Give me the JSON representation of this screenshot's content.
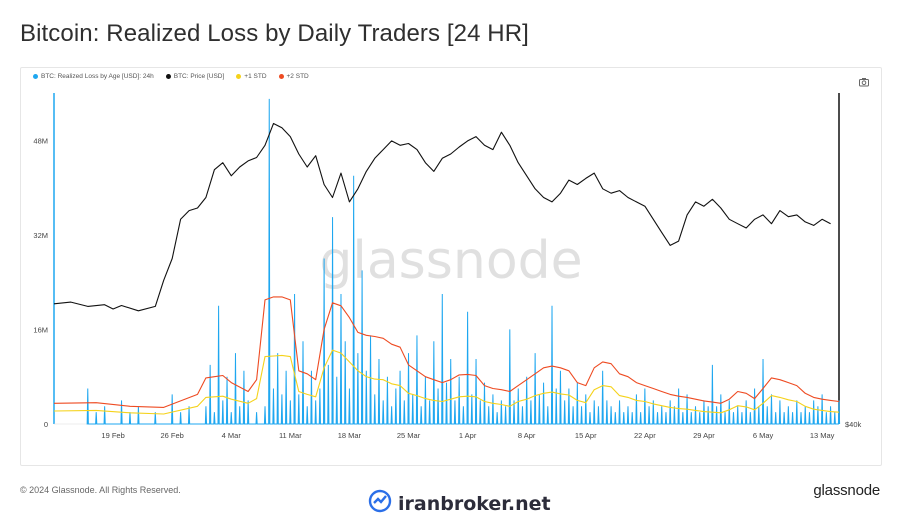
{
  "title": "Bitcoin: Realized Loss by Daily Traders [24 HR]",
  "legend": [
    {
      "label": "BTC: Realized Loss by Age [USD]: 24h",
      "color": "#1ea7f0"
    },
    {
      "label": "BTC: Price [USD]",
      "color": "#111111"
    },
    {
      "label": "+1 STD",
      "color": "#f5d21a"
    },
    {
      "label": "+2 STD",
      "color": "#ee4b22"
    }
  ],
  "watermark": "glassnode",
  "footer": {
    "copyright": "© 2024 Glassnode. All Rights Reserved.",
    "brand": "glassnode",
    "partner": "iranbroker.net"
  },
  "icons": {
    "camera": "camera-icon",
    "partner_logo": "chart-check-icon"
  },
  "chart_data": {
    "type": "line",
    "x_ticks": [
      "19 Feb",
      "26 Feb",
      "4 Mar",
      "11 Mar",
      "18 Mar",
      "25 Mar",
      "1 Apr",
      "8 Apr",
      "15 Apr",
      "22 Apr",
      "29 Apr",
      "6 May",
      "13 May"
    ],
    "y_left_ticks": [
      "0",
      "16M",
      "32M",
      "48M"
    ],
    "y_right_ticks": [
      "$40k"
    ],
    "y_left_range": [
      0,
      56000000
    ],
    "grid": false,
    "legend_position": "top-left",
    "series": [
      {
        "name": "BTC: Realized Loss by Age [USD]: 24h",
        "color": "#1ea7f0",
        "note_units": "USD millions",
        "days_from_12_Feb": [
          4,
          5,
          6,
          8,
          9,
          10,
          12,
          14,
          15,
          16,
          18,
          18.5,
          19,
          19.5,
          20,
          20.5,
          21,
          21.5,
          22,
          22.5,
          23,
          24,
          25,
          25.5,
          26,
          26.5,
          27,
          27.5,
          28,
          28.5,
          29,
          29.5,
          30,
          30.5,
          31,
          31.5,
          32,
          32.5,
          33,
          33.5,
          34,
          34.5,
          35,
          35.5,
          36,
          36.5,
          37,
          37.5,
          38,
          38.5,
          39,
          39.5,
          40,
          40.5,
          41,
          41.5,
          42,
          42.5,
          43,
          43.5,
          44,
          44.5,
          45,
          45.5,
          46,
          46.5,
          47,
          47.5,
          48,
          48.5,
          49,
          49.5,
          50,
          50.5,
          51,
          51.5,
          52,
          52.5,
          53,
          53.5,
          54,
          54.5,
          55,
          55.5,
          56,
          56.5,
          57,
          57.5,
          58,
          58.5,
          59,
          59.5,
          60,
          60.5,
          61,
          61.5,
          62,
          62.5,
          63,
          63.5,
          64,
          64.5,
          65,
          65.5,
          66,
          66.5,
          67,
          67.5,
          68,
          68.5,
          69,
          69.5,
          70,
          70.5,
          71,
          71.5,
          72,
          72.5,
          73,
          73.5,
          74,
          74.5,
          75,
          75.5,
          76,
          76.5,
          77,
          77.5,
          78,
          78.5,
          79,
          79.5,
          80,
          80.5,
          81,
          81.5,
          82,
          82.5,
          83,
          83.5,
          84,
          84.5,
          85,
          85.5,
          86,
          86.5,
          87,
          87.5,
          88,
          88.5,
          89,
          89.5,
          90,
          90.5,
          91,
          91.5,
          92,
          92.5,
          93
        ],
        "values": [
          6,
          2,
          3,
          4,
          2,
          3,
          2,
          5,
          2,
          3,
          3,
          10,
          2,
          20,
          4,
          8,
          2,
          12,
          3,
          9,
          4,
          2,
          3,
          55,
          6,
          12,
          5,
          9,
          4,
          22,
          5,
          14,
          3,
          9,
          4,
          6,
          28,
          10,
          35,
          8,
          22,
          14,
          6,
          42,
          12,
          26,
          9,
          15,
          5,
          11,
          4,
          8,
          3,
          6,
          9,
          4,
          12,
          5,
          15,
          3,
          8,
          4,
          14,
          6,
          22,
          7,
          11,
          4,
          8,
          3,
          19,
          5,
          11,
          4,
          7,
          3,
          5,
          2,
          4,
          3,
          16,
          4,
          6,
          3,
          8,
          4,
          12,
          5,
          7,
          3,
          20,
          6,
          9,
          4,
          6,
          3,
          7,
          3,
          5,
          2,
          4,
          3,
          9,
          4,
          3,
          2,
          4,
          2,
          3,
          2,
          5,
          2,
          6,
          3,
          4,
          2,
          3,
          2,
          4,
          3,
          6,
          2,
          5,
          2,
          3,
          2,
          4,
          3,
          10,
          3,
          5,
          2,
          4,
          2,
          3,
          2,
          4,
          2,
          6,
          3,
          11,
          3,
          5,
          2,
          4,
          2,
          3,
          2,
          4,
          2,
          3,
          2,
          4,
          3,
          5,
          2,
          3,
          2,
          4,
          2,
          3,
          2,
          4,
          3,
          5
        ]
      },
      {
        "name": "BTC: Price [USD]",
        "color": "#111111",
        "note_units": "USD thousands",
        "days_from_12_Feb": [
          0,
          2,
          4,
          6,
          7,
          8,
          10,
          12,
          13,
          14,
          15,
          16,
          17,
          18,
          19,
          20,
          21,
          22,
          23,
          24,
          25,
          26,
          27,
          28,
          29,
          30,
          31,
          32,
          33,
          34,
          35,
          36,
          37,
          38,
          39,
          40,
          41,
          42,
          43,
          44,
          45,
          46,
          47,
          48,
          49,
          50,
          51,
          52,
          53,
          54,
          55,
          56,
          57,
          58,
          59,
          60,
          61,
          62,
          63,
          64,
          65,
          66,
          67,
          68,
          69,
          70,
          71,
          72,
          73,
          74,
          75,
          76,
          77,
          78,
          79,
          80,
          81,
          82,
          83,
          84,
          85,
          86,
          87,
          88,
          89,
          90,
          91,
          92
        ],
        "values": [
          51.8,
          52.0,
          51.5,
          51.7,
          51.2,
          51.6,
          51.0,
          51.5,
          54.5,
          57.0,
          61.5,
          62.5,
          62.8,
          64.0,
          67.2,
          68.0,
          66.5,
          67.5,
          68.2,
          68.6,
          70.0,
          72.5,
          72.0,
          71.0,
          69.0,
          67.5,
          68.8,
          65.5,
          64.0,
          66.8,
          63.5,
          65.0,
          67.0,
          68.5,
          69.5,
          70.5,
          70.0,
          70.2,
          69.5,
          68.0,
          67.0,
          68.5,
          69.0,
          69.8,
          70.5,
          71.0,
          70.0,
          69.5,
          71.5,
          70.0,
          68.0,
          66.5,
          65.0,
          64.0,
          63.5,
          64.5,
          66.0,
          65.5,
          66.2,
          66.8,
          65.0,
          64.5,
          64.8,
          64.0,
          63.5,
          63.0,
          61.5,
          60.0,
          58.5,
          59.0,
          62.0,
          63.5,
          63.0,
          63.8,
          62.8,
          61.5,
          61.0,
          60.5,
          61.5,
          62.0,
          61.0,
          62.5,
          61.8,
          62.0,
          61.2,
          60.8,
          61.5,
          61.0
        ]
      },
      {
        "name": "+1 STD",
        "color": "#f5d21a",
        "note_units": "USD millions",
        "days_from_12_Feb": [
          0,
          5,
          9,
          13,
          17,
          18,
          19,
          20,
          21,
          23,
          24,
          25,
          26,
          27,
          28,
          29,
          30,
          31,
          32,
          33,
          34,
          35,
          36,
          37,
          38,
          39,
          40,
          41,
          42,
          43,
          44,
          45,
          46,
          47,
          48,
          49,
          50,
          51,
          52,
          53,
          54,
          55,
          56,
          57,
          58,
          59,
          60,
          61,
          62,
          63,
          64,
          65,
          66,
          67,
          68,
          69,
          70,
          71,
          72,
          73,
          74,
          75,
          76,
          77,
          78,
          79,
          80,
          81,
          82,
          83,
          84,
          85,
          86,
          87,
          88,
          89,
          90,
          91,
          92,
          93
        ],
        "values": [
          2.2,
          2.3,
          1.9,
          1.7,
          3.0,
          4.5,
          4.6,
          4.7,
          4.2,
          3.5,
          4.3,
          11.4,
          11.5,
          11.6,
          11.4,
          5.5,
          5.0,
          4.6,
          9.5,
          12.5,
          12.0,
          10.5,
          9.0,
          8.0,
          7.6,
          7.5,
          6.8,
          6.5,
          5.2,
          4.8,
          4.3,
          4.0,
          3.8,
          4.2,
          4.6,
          4.7,
          4.6,
          3.8,
          3.5,
          3.3,
          3.0,
          3.8,
          4.2,
          4.8,
          5.2,
          5.4,
          5.1,
          4.9,
          4.0,
          3.6,
          5.8,
          6.5,
          6.3,
          4.8,
          4.5,
          4.0,
          3.8,
          3.4,
          3.1,
          2.8,
          2.6,
          2.5,
          2.3,
          2.1,
          2.0,
          1.9,
          2.4,
          3.1,
          2.9,
          2.4,
          3.5,
          4.8,
          4.5,
          4.1,
          3.8,
          3.0,
          2.5,
          2.3,
          2.1,
          2.0
        ]
      },
      {
        "name": "+2 STD",
        "color": "#ee4b22",
        "note_units": "USD millions",
        "days_from_12_Feb": [
          0,
          5,
          9,
          13,
          17,
          18,
          19,
          20,
          21,
          23,
          24,
          25,
          26,
          27,
          28,
          29,
          30,
          31,
          32,
          33,
          34,
          35,
          36,
          37,
          38,
          39,
          40,
          41,
          42,
          43,
          44,
          45,
          46,
          47,
          48,
          49,
          50,
          51,
          52,
          53,
          54,
          55,
          56,
          57,
          58,
          59,
          60,
          61,
          62,
          63,
          64,
          65,
          66,
          67,
          68,
          69,
          70,
          71,
          72,
          73,
          74,
          75,
          76,
          77,
          78,
          79,
          80,
          81,
          82,
          83,
          84,
          85,
          86,
          87,
          88,
          89,
          90,
          91,
          92,
          93
        ],
        "values": [
          3.5,
          3.6,
          3.0,
          2.8,
          5.0,
          7.8,
          8.0,
          8.2,
          7.0,
          5.5,
          7.5,
          21.0,
          21.5,
          21.5,
          21.0,
          9.0,
          8.5,
          7.5,
          16.0,
          20.5,
          20.0,
          18.0,
          15.5,
          15.0,
          14.8,
          14.5,
          13.5,
          13.0,
          10.0,
          9.0,
          8.0,
          7.5,
          7.0,
          7.5,
          8.3,
          8.4,
          8.2,
          6.5,
          6.0,
          5.8,
          5.5,
          6.5,
          7.5,
          8.5,
          9.5,
          9.8,
          9.5,
          9.0,
          7.0,
          6.5,
          9.5,
          10.5,
          10.2,
          8.5,
          8.0,
          7.0,
          6.5,
          6.0,
          5.5,
          5.0,
          4.7,
          4.5,
          4.2,
          3.9,
          3.7,
          3.5,
          4.2,
          5.5,
          5.2,
          4.3,
          6.0,
          7.8,
          7.5,
          7.0,
          6.5,
          5.2,
          4.5,
          4.2,
          4.0,
          3.8
        ]
      }
    ]
  }
}
